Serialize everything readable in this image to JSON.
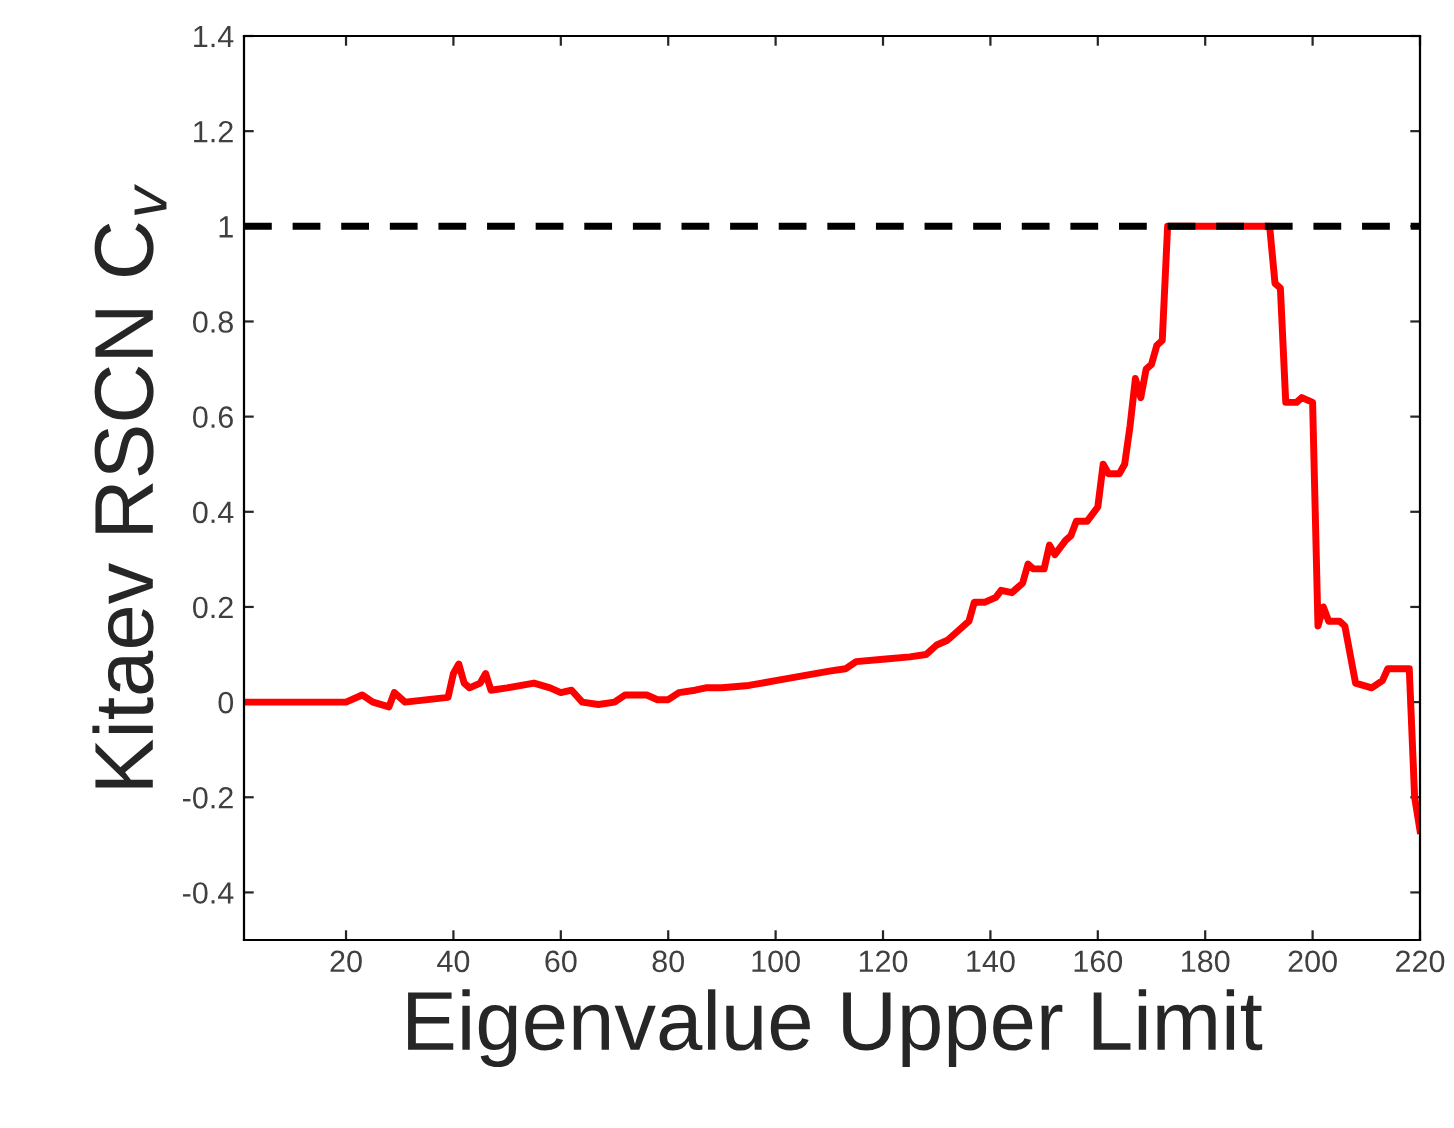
{
  "chart_data": {
    "type": "line",
    "xlabel": "Eigenvalue Upper Limit",
    "ylabel": "Kitaev RSCN C$_{v}$",
    "xlim": [
      1,
      220
    ],
    "xticks": [
      20,
      40,
      60,
      80,
      100,
      120,
      140,
      160,
      180,
      200,
      220
    ],
    "ylim": [
      -0.5,
      1.4
    ],
    "yticks": [
      -0.4,
      -0.2,
      0,
      0.2,
      0.4,
      0.6,
      0.8,
      1,
      1.2,
      1.4
    ],
    "grid": false,
    "legend": false,
    "ref_lines": [
      {
        "axis": "y",
        "value": 1,
        "color": "#000000",
        "line_style": "dashed"
      }
    ],
    "series": [
      {
        "color": "#ff0000",
        "x": [
          1,
          10,
          20,
          23,
          25,
          28,
          29,
          31,
          39,
          40,
          41,
          42,
          43,
          45,
          46,
          47,
          50,
          55,
          58,
          60,
          62,
          64,
          67,
          70,
          72,
          76,
          78,
          80,
          82,
          85,
          87,
          90,
          95,
          100,
          105,
          110,
          113,
          115,
          120,
          125,
          128,
          130,
          132,
          134,
          136,
          137,
          139,
          141,
          142,
          144,
          146,
          147,
          148,
          150,
          151,
          152,
          154,
          155,
          156,
          158,
          160,
          161,
          162,
          164,
          165,
          166,
          167,
          168,
          169,
          170,
          171,
          172,
          173,
          175,
          192,
          193,
          194,
          195,
          197,
          198,
          200,
          201,
          202,
          203,
          205,
          206,
          208,
          211,
          213,
          214,
          218,
          219,
          220
        ],
        "values": [
          0,
          0,
          0,
          0.015,
          0,
          -0.01,
          0.02,
          0,
          0.01,
          0.06,
          0.08,
          0.04,
          0.03,
          0.04,
          0.06,
          0.025,
          0.03,
          0.04,
          0.03,
          0.02,
          0.025,
          0,
          -0.005,
          0,
          0.015,
          0.015,
          0.005,
          0.005,
          0.02,
          0.025,
          0.03,
          0.03,
          0.035,
          0.045,
          0.055,
          0.065,
          0.07,
          0.085,
          0.09,
          0.095,
          0.1,
          0.12,
          0.13,
          0.15,
          0.17,
          0.21,
          0.21,
          0.22,
          0.235,
          0.23,
          0.25,
          0.29,
          0.28,
          0.28,
          0.33,
          0.31,
          0.34,
          0.35,
          0.38,
          0.38,
          0.41,
          0.5,
          0.48,
          0.48,
          0.5,
          0.58,
          0.68,
          0.64,
          0.7,
          0.71,
          0.75,
          0.76,
          1.0,
          1.0,
          1.0,
          0.88,
          0.87,
          0.63,
          0.63,
          0.64,
          0.63,
          0.16,
          0.2,
          0.17,
          0.17,
          0.16,
          0.04,
          0.03,
          0.045,
          0.07,
          0.07,
          -0.2,
          -0.27
        ]
      }
    ]
  }
}
